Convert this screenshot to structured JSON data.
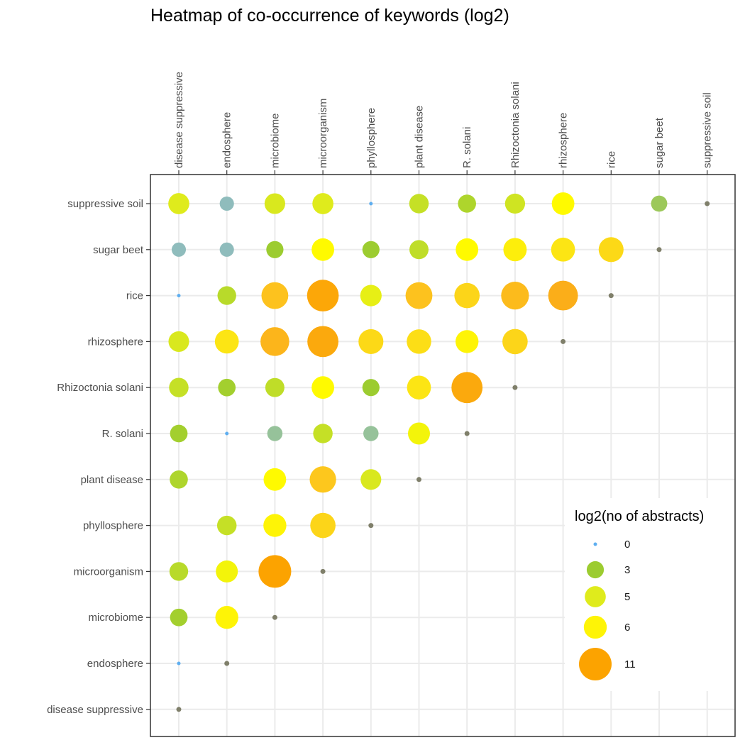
{
  "chart_data": {
    "type": "heatmap",
    "title": "Heatmap of co-occurrence of keywords (log2)",
    "x_categories": [
      "disease suppressive",
      "endosphere",
      "microbiome",
      "microorganism",
      "phyllosphere",
      "plant disease",
      "R. solani",
      "Rhizoctonia solani",
      "rhizosphere",
      "rice",
      "sugar beet",
      "suppressive soil"
    ],
    "y_categories": [
      "suppressive soil",
      "sugar beet",
      "rice",
      "rhizosphere",
      "Rhizoctonia solani",
      "R. solani",
      "plant disease",
      "phyllosphere",
      "microorganism",
      "microbiome",
      "endosphere",
      "disease suppressive"
    ],
    "points": [
      {
        "x": "disease suppressive",
        "y": "suppressive soil",
        "value": 5
      },
      {
        "x": "endosphere",
        "y": "suppressive soil",
        "value": 1.5
      },
      {
        "x": "microbiome",
        "y": "suppressive soil",
        "value": 4.8
      },
      {
        "x": "microorganism",
        "y": "suppressive soil",
        "value": 5
      },
      {
        "x": "phyllosphere",
        "y": "suppressive soil",
        "value": 0
      },
      {
        "x": "plant disease",
        "y": "suppressive soil",
        "value": 4.2
      },
      {
        "x": "R. solani",
        "y": "suppressive soil",
        "value": 3.5
      },
      {
        "x": "Rhizoctonia solani",
        "y": "suppressive soil",
        "value": 4.5
      },
      {
        "x": "rhizosphere",
        "y": "suppressive soil",
        "value": 5.8
      },
      {
        "x": "sugar beet",
        "y": "suppressive soil",
        "value": 2.5
      },
      {
        "x": "disease suppressive",
        "y": "sugar beet",
        "value": 1.5
      },
      {
        "x": "endosphere",
        "y": "sugar beet",
        "value": 1.5
      },
      {
        "x": "microbiome",
        "y": "sugar beet",
        "value": 3
      },
      {
        "x": "microorganism",
        "y": "sugar beet",
        "value": 5.8
      },
      {
        "x": "phyllosphere",
        "y": "sugar beet",
        "value": 3
      },
      {
        "x": "plant disease",
        "y": "sugar beet",
        "value": 4
      },
      {
        "x": "R. solani",
        "y": "sugar beet",
        "value": 5.8
      },
      {
        "x": "Rhizoctonia solani",
        "y": "sugar beet",
        "value": 6.2
      },
      {
        "x": "rhizosphere",
        "y": "sugar beet",
        "value": 6.5
      },
      {
        "x": "rice",
        "y": "sugar beet",
        "value": 7
      },
      {
        "x": "disease suppressive",
        "y": "rice",
        "value": 0
      },
      {
        "x": "endosphere",
        "y": "rice",
        "value": 3.8
      },
      {
        "x": "microbiome",
        "y": "rice",
        "value": 8
      },
      {
        "x": "microorganism",
        "y": "rice",
        "value": 10.5
      },
      {
        "x": "phyllosphere",
        "y": "rice",
        "value": 5.2
      },
      {
        "x": "plant disease",
        "y": "rice",
        "value": 8
      },
      {
        "x": "R. solani",
        "y": "rice",
        "value": 7.2
      },
      {
        "x": "Rhizoctonia solani",
        "y": "rice",
        "value": 8.5
      },
      {
        "x": "rhizosphere",
        "y": "rice",
        "value": 9.5
      },
      {
        "x": "disease suppressive",
        "y": "rhizosphere",
        "value": 4.8
      },
      {
        "x": "endosphere",
        "y": "rhizosphere",
        "value": 6.5
      },
      {
        "x": "microbiome",
        "y": "rhizosphere",
        "value": 9
      },
      {
        "x": "microorganism",
        "y": "rhizosphere",
        "value": 10.2
      },
      {
        "x": "phyllosphere",
        "y": "rhizosphere",
        "value": 7
      },
      {
        "x": "plant disease",
        "y": "rhizosphere",
        "value": 6.8
      },
      {
        "x": "R. solani",
        "y": "rhizosphere",
        "value": 6
      },
      {
        "x": "Rhizoctonia solani",
        "y": "rhizosphere",
        "value": 7.2
      },
      {
        "x": "disease suppressive",
        "y": "Rhizoctonia solani",
        "value": 4.2
      },
      {
        "x": "endosphere",
        "y": "Rhizoctonia solani",
        "value": 3.2
      },
      {
        "x": "microbiome",
        "y": "Rhizoctonia solani",
        "value": 4
      },
      {
        "x": "microorganism",
        "y": "Rhizoctonia solani",
        "value": 5.8
      },
      {
        "x": "phyllosphere",
        "y": "Rhizoctonia solani",
        "value": 3
      },
      {
        "x": "plant disease",
        "y": "Rhizoctonia solani",
        "value": 6.5
      },
      {
        "x": "R. solani",
        "y": "Rhizoctonia solani",
        "value": 10.2
      },
      {
        "x": "disease suppressive",
        "y": "R. solani",
        "value": 3.2
      },
      {
        "x": "endosphere",
        "y": "R. solani",
        "value": 0
      },
      {
        "x": "microbiome",
        "y": "R. solani",
        "value": 2
      },
      {
        "x": "microorganism",
        "y": "R. solani",
        "value": 4.2
      },
      {
        "x": "phyllosphere",
        "y": "R. solani",
        "value": 2
      },
      {
        "x": "plant disease",
        "y": "R. solani",
        "value": 5.5
      },
      {
        "x": "disease suppressive",
        "y": "plant disease",
        "value": 3.5
      },
      {
        "x": "microbiome",
        "y": "plant disease",
        "value": 5.8
      },
      {
        "x": "microorganism",
        "y": "plant disease",
        "value": 7.8
      },
      {
        "x": "phyllosphere",
        "y": "plant disease",
        "value": 4.8
      },
      {
        "x": "endosphere",
        "y": "phyllosphere",
        "value": 4.2
      },
      {
        "x": "microbiome",
        "y": "phyllosphere",
        "value": 6
      },
      {
        "x": "microorganism",
        "y": "phyllosphere",
        "value": 7.2
      },
      {
        "x": "disease suppressive",
        "y": "microorganism",
        "value": 3.8
      },
      {
        "x": "endosphere",
        "y": "microorganism",
        "value": 5.5
      },
      {
        "x": "microbiome",
        "y": "microorganism",
        "value": 11
      },
      {
        "x": "disease suppressive",
        "y": "microbiome",
        "value": 3.2
      },
      {
        "x": "endosphere",
        "y": "microbiome",
        "value": 6
      },
      {
        "x": "disease suppressive",
        "y": "endosphere",
        "value": 0
      }
    ],
    "diagonal": [
      "disease suppressive",
      "endosphere",
      "microbiome",
      "microorganism",
      "phyllosphere",
      "plant disease",
      "R. solani",
      "Rhizoctonia solani",
      "rhizosphere",
      "rice",
      "sugar beet",
      "suppressive soil"
    ],
    "diagonal_color": "#7f7f6a",
    "legend": {
      "title": "log2(no of abstracts)",
      "placement": "right",
      "entries": [
        {
          "label": "0",
          "value": 0
        },
        {
          "label": "3",
          "value": 3
        },
        {
          "label": "5",
          "value": 5
        },
        {
          "label": "6",
          "value": 6
        },
        {
          "label": "11",
          "value": 11
        }
      ]
    },
    "value_range": [
      0,
      11
    ],
    "color_scale": [
      {
        "value": 0,
        "color": "#5eaef0"
      },
      {
        "value": 1.5,
        "color": "#8fbcbc"
      },
      {
        "value": 2,
        "color": "#96c29a"
      },
      {
        "value": 2.5,
        "color": "#9cc85a"
      },
      {
        "value": 3,
        "color": "#9ccc30"
      },
      {
        "value": 4,
        "color": "#bfdd28"
      },
      {
        "value": 5,
        "color": "#dfeb1c"
      },
      {
        "value": 5.8,
        "color": "#fffa00"
      },
      {
        "value": 6.5,
        "color": "#fce514"
      },
      {
        "value": 8,
        "color": "#fdc21e"
      },
      {
        "value": 9.5,
        "color": "#fbae19"
      },
      {
        "value": 11,
        "color": "#fca300"
      }
    ],
    "grid": true
  }
}
